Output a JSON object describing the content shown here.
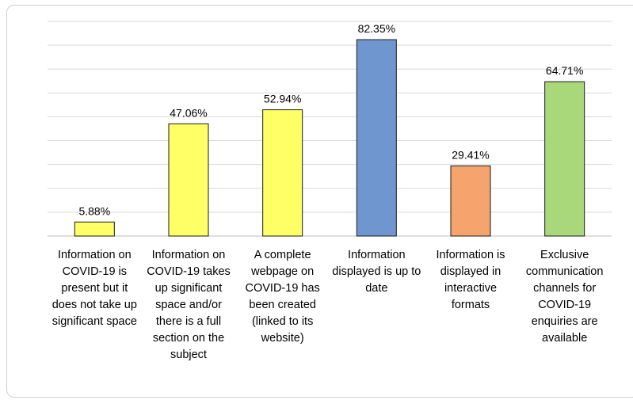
{
  "chart_data": {
    "type": "bar",
    "categories": [
      "Information on COVID-19 is present but it does not take up significant space",
      "Information on COVID-19 takes up significant space and/or there is a full section on the subject",
      "A complete webpage on COVID-19 has been created (linked to its website)",
      "Information displayed is up to date",
      "Information is displayed in interactive formats",
      "Exclusive communication channels for COVID-19 enquiries are available"
    ],
    "values": [
      5.88,
      47.06,
      52.94,
      82.35,
      29.41,
      64.71
    ],
    "value_labels": [
      "5.88%",
      "47.06%",
      "52.94%",
      "82.35%",
      "29.41%",
      "64.71%"
    ],
    "colors": [
      "#ffff66",
      "#ffff66",
      "#ffff66",
      "#7096d0",
      "#f4a46c",
      "#a9d87a"
    ],
    "ylim": [
      0,
      90
    ],
    "yticks": [
      0,
      10,
      20,
      30,
      40,
      50,
      60,
      70,
      80,
      90
    ],
    "grid": true
  }
}
